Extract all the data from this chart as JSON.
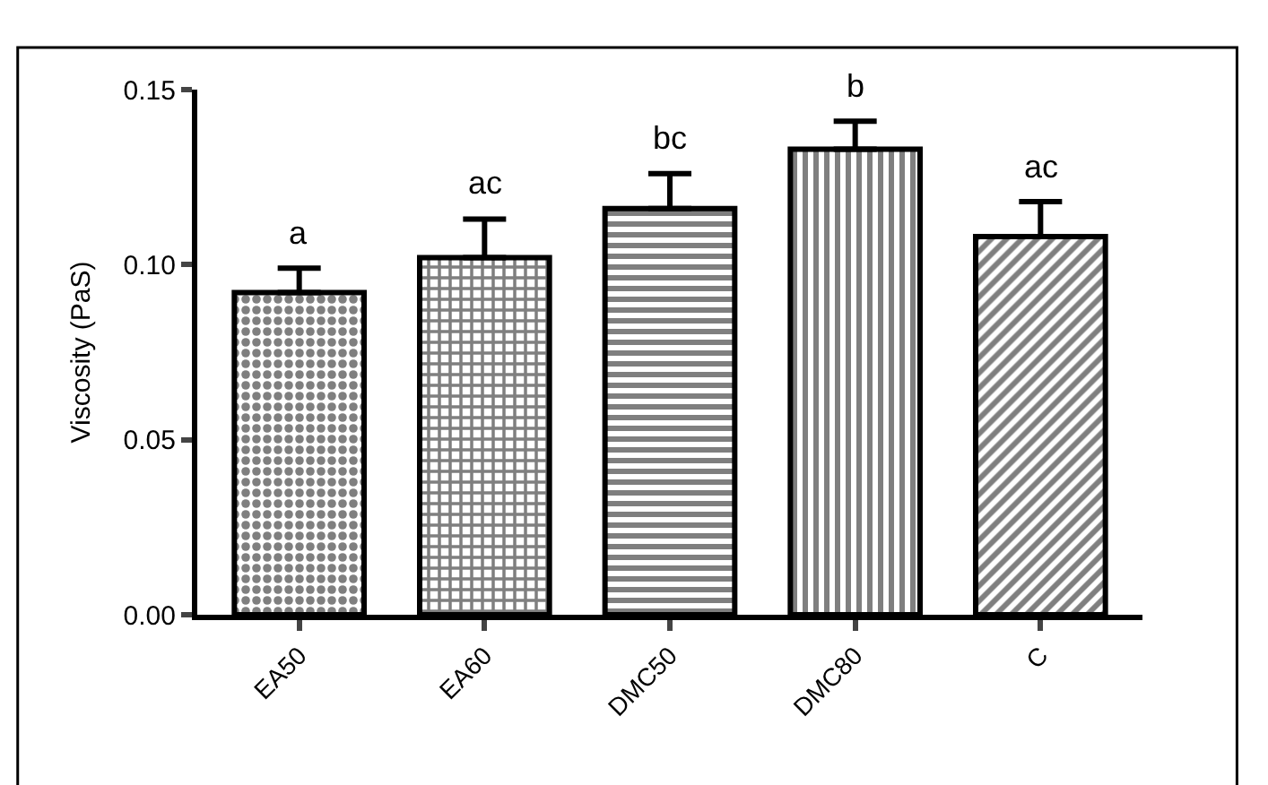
{
  "chart_data": {
    "type": "bar",
    "ylabel": "Viscosity (PaS)",
    "categories": [
      "EA50",
      "EA60",
      "DMC50",
      "DMC80",
      "C"
    ],
    "values": [
      0.092,
      0.102,
      0.116,
      0.133,
      0.108
    ],
    "errors": [
      0.007,
      0.011,
      0.01,
      0.008,
      0.01
    ],
    "color": "#000000",
    "ylim": [
      0,
      0.15
    ],
    "yticks": [
      {
        "value": 0,
        "label": "0.00"
      },
      {
        "value": 0.05,
        "label": "0.05"
      },
      {
        "value": 0.1,
        "label": "0.10"
      },
      {
        "value": 0.15,
        "label": "0.15"
      }
    ],
    "annotations": [
      "a",
      "ac",
      "bc",
      "b",
      "ac"
    ]
  }
}
